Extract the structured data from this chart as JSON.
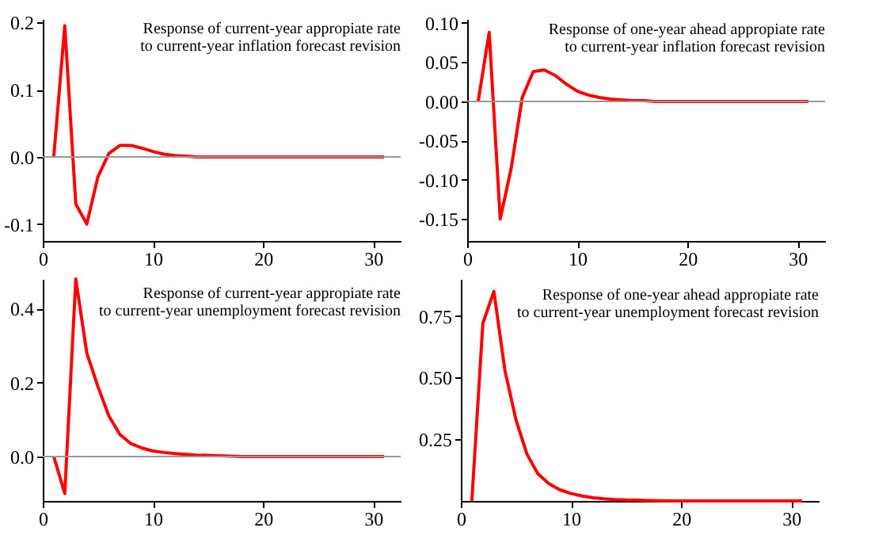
{
  "chart_data": [
    {
      "type": "line",
      "title": "Response of current-year appropiate rate\nto current-year  inflation forecast revision",
      "x": [
        1,
        2,
        3,
        4,
        5,
        6,
        7,
        8,
        9,
        10,
        11,
        12,
        13,
        14,
        15,
        16,
        17,
        18,
        19,
        20,
        21,
        22,
        23,
        24,
        25,
        26,
        27,
        28,
        29,
        30,
        31
      ],
      "series": [
        {
          "color": "#ff0000",
          "values": [
            0,
            0.195,
            -0.07,
            -0.1,
            -0.03,
            0.005,
            0.017,
            0.017,
            0.013,
            0.008,
            0.004,
            0.002,
            0.001,
            0,
            0,
            0,
            0,
            0,
            0,
            0,
            0,
            0,
            0,
            0,
            0,
            0,
            0,
            0,
            0,
            0,
            0
          ]
        }
      ],
      "xlim": [
        0,
        32.5
      ],
      "xticks": [
        0,
        10,
        20,
        30
      ],
      "ylim": [
        -0.125,
        0.205
      ],
      "yticks": [
        {
          "value": -0.1,
          "label": "-0.1"
        },
        {
          "value": 0,
          "label": "0.0"
        },
        {
          "value": 0.1,
          "label": "0.1"
        },
        {
          "value": 0.2,
          "label": "0.2"
        }
      ],
      "ref_lines": [
        {
          "axis": "y",
          "value": 0,
          "color": "#999999"
        }
      ],
      "grid": false,
      "legend": false
    },
    {
      "type": "line",
      "title": "Response of one-year ahead appropiate rate\nto current-year inflation forecast revision",
      "x": [
        1,
        2,
        3,
        4,
        5,
        6,
        7,
        8,
        9,
        10,
        11,
        12,
        13,
        14,
        15,
        16,
        17,
        18,
        19,
        20,
        21,
        22,
        23,
        24,
        25,
        26,
        27,
        28,
        29,
        30,
        31
      ],
      "series": [
        {
          "color": "#ff0000",
          "values": [
            0,
            0.088,
            -0.15,
            -0.085,
            0.005,
            0.038,
            0.04,
            0.033,
            0.022,
            0.013,
            0.008,
            0.005,
            0.003,
            0.002,
            0.001,
            0.001,
            0,
            0,
            0,
            0,
            0,
            0,
            0,
            0,
            0,
            0,
            0,
            0,
            0,
            0,
            0
          ]
        }
      ],
      "xlim": [
        0,
        32.5
      ],
      "xticks": [
        0,
        10,
        20,
        30
      ],
      "ylim": [
        -0.178,
        0.105
      ],
      "yticks": [
        {
          "value": -0.15,
          "label": "-0.15"
        },
        {
          "value": -0.1,
          "label": "-0.10"
        },
        {
          "value": -0.05,
          "label": "-0.05"
        },
        {
          "value": 0,
          "label": "0.00"
        },
        {
          "value": 0.05,
          "label": "0.05"
        },
        {
          "value": 0.1,
          "label": "0.10"
        }
      ],
      "ref_lines": [
        {
          "axis": "y",
          "value": 0,
          "color": "#999999"
        }
      ],
      "grid": false,
      "legend": false
    },
    {
      "type": "line",
      "title": "Response of current-year appropiate rate\nto current-year  unemployment forecast revision",
      "x": [
        1,
        2,
        3,
        4,
        5,
        6,
        7,
        8,
        9,
        10,
        11,
        12,
        13,
        14,
        15,
        16,
        17,
        18,
        19,
        20,
        21,
        22,
        23,
        24,
        25,
        26,
        27,
        28,
        29,
        30,
        31
      ],
      "series": [
        {
          "color": "#ff0000",
          "values": [
            0,
            -0.1,
            0.48,
            0.28,
            0.19,
            0.11,
            0.06,
            0.035,
            0.023,
            0.015,
            0.011,
            0.008,
            0.006,
            0.004,
            0.003,
            0.002,
            0.001,
            0,
            0,
            0,
            0,
            0,
            0,
            0,
            0,
            0,
            0,
            0,
            0,
            0,
            0
          ]
        }
      ],
      "xlim": [
        0,
        32.5
      ],
      "xticks": [
        0,
        10,
        20,
        30
      ],
      "ylim": [
        -0.12,
        0.48
      ],
      "yticks": [
        {
          "value": 0,
          "label": "0.0"
        },
        {
          "value": 0.2,
          "label": "0.2"
        },
        {
          "value": 0.4,
          "label": "0.4"
        }
      ],
      "ref_lines": [
        {
          "axis": "y",
          "value": 0,
          "color": "#999999"
        }
      ],
      "grid": false,
      "legend": false
    },
    {
      "type": "line",
      "title": "Response of one-year ahead appropiate rate\nto current-year  unemployment forecast revision",
      "x": [
        1,
        2,
        3,
        4,
        5,
        6,
        7,
        8,
        9,
        10,
        11,
        12,
        13,
        14,
        15,
        16,
        17,
        18,
        19,
        20,
        21,
        22,
        23,
        24,
        25,
        26,
        27,
        28,
        29,
        30,
        31
      ],
      "series": [
        {
          "color": "#ff0000",
          "values": [
            0,
            0.72,
            0.85,
            0.53,
            0.33,
            0.19,
            0.11,
            0.07,
            0.045,
            0.03,
            0.02,
            0.013,
            0.009,
            0.006,
            0.004,
            0.003,
            0.002,
            0.001,
            0,
            0,
            0,
            0,
            0,
            0,
            0,
            0,
            0,
            0,
            0,
            0,
            0
          ]
        }
      ],
      "xlim": [
        0,
        32.5
      ],
      "xticks": [
        0,
        10,
        20,
        30
      ],
      "ylim": [
        0,
        0.9
      ],
      "yticks": [
        {
          "value": 0.25,
          "label": "0.25"
        },
        {
          "value": 0.5,
          "label": "0.50"
        },
        {
          "value": 0.75,
          "label": "0.75"
        }
      ],
      "grid": false,
      "legend": false
    }
  ]
}
